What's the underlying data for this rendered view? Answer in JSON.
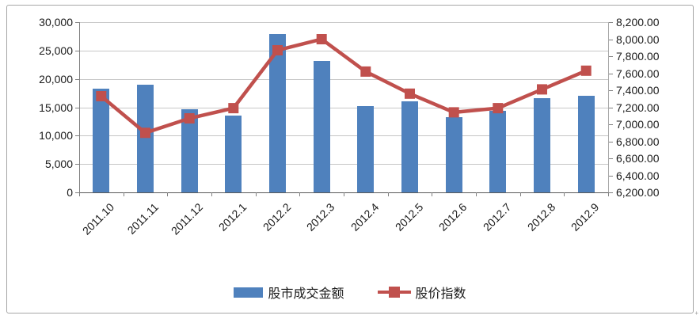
{
  "page": {
    "background": "#ffffff",
    "frame_border_color": "#a6a6a6"
  },
  "legend": {
    "bar_label": "股市成交金额",
    "line_label": "股价指数"
  },
  "chart_data": {
    "type": "combo-bar-line",
    "title": "",
    "xlabel": "",
    "ylabel_left": "",
    "ylabel_right": "",
    "grid": true,
    "legend_position": "bottom",
    "x_tick_rotation": -45,
    "categories": [
      "2011.10",
      "2011.11",
      "2011.12",
      "2012.1",
      "2012.2",
      "2012.3",
      "2012.4",
      "2012.5",
      "2012.6",
      "2012.7",
      "2012.8",
      "2012.9"
    ],
    "series": [
      {
        "name": "股市成交金额",
        "type": "bar",
        "axis": "left",
        "color": "#4f81bd",
        "values": [
          18300,
          19000,
          14600,
          13500,
          27900,
          23100,
          15200,
          16000,
          13300,
          14400,
          16600,
          17000
        ]
      },
      {
        "name": "股价指数",
        "type": "line",
        "axis": "right",
        "color": "#c0504d",
        "marker": "square",
        "values": [
          7330,
          6900,
          7070,
          7190,
          7870,
          8000,
          7620,
          7360,
          7140,
          7190,
          7410,
          7630
        ]
      }
    ],
    "left_axis": {
      "min": 0,
      "max": 30000,
      "step": 5000,
      "tick_labels": [
        "0",
        "5,000",
        "10,000",
        "15,000",
        "20,000",
        "25,000",
        "30,000"
      ]
    },
    "right_axis": {
      "min": 6200,
      "max": 8200,
      "step": 200,
      "tick_labels": [
        "6,200.00",
        "6,400.00",
        "6,600.00",
        "6,800.00",
        "7,000.00",
        "7,200.00",
        "7,400.00",
        "7,600.00",
        "7,800.00",
        "8,000.00",
        "8,200.00"
      ]
    }
  }
}
